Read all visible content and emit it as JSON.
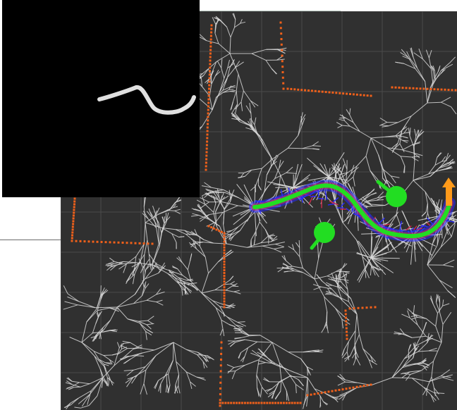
{
  "colors": {
    "background": "#303030",
    "grid": "#4a4a4a",
    "tree": "#d8d8d8",
    "obstacle": "#f0601a",
    "path": "#22dd22",
    "path_halo_blue": "#2a2aff",
    "path_halo_red": "#d02a4a",
    "goal_arrow": "#ff9a1a",
    "agent": "#22dd22",
    "inset_background": "#000000",
    "inset_stroke": "#e0e0e0"
  },
  "icons": {
    "agent_marker": "green-circle-with-heading-arrow",
    "goal_marker": "orange-up-arrow"
  }
}
